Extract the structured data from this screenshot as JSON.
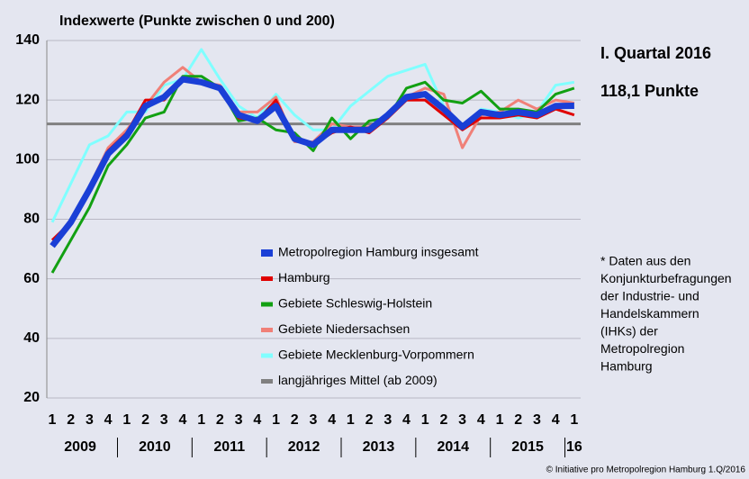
{
  "chart_data": {
    "type": "line",
    "title": "Indexwerte (Punkte zwischen 0 und 200)",
    "headline": "I. Quartal 2016",
    "headline_value": "118,1 Punkte",
    "footnote": [
      "* Daten aus den",
      "Konjunkturbefragungen",
      "der Industrie- und",
      "Handelskammern",
      "(IHKs) der",
      "Metropolregion",
      "Hamburg"
    ],
    "source": "© Initiative pro Metropolregion Hamburg 1.Q/2016",
    "categories": [
      "1",
      "2",
      "3",
      "4",
      "1",
      "2",
      "3",
      "4",
      "1",
      "2",
      "3",
      "4",
      "1",
      "2",
      "3",
      "4",
      "1",
      "2",
      "3",
      "4",
      "1",
      "2",
      "3",
      "4",
      "1",
      "2",
      "3",
      "4",
      "1"
    ],
    "years": [
      "2009",
      "2010",
      "2011",
      "2012",
      "2013",
      "2014",
      "2015",
      "16"
    ],
    "ylim": [
      20,
      140
    ],
    "yticks": [
      20,
      40,
      60,
      80,
      100,
      120,
      140
    ],
    "grid": true,
    "series": [
      {
        "name": "Metropolregion Hamburg insgesamt",
        "color": "#1a3fd6",
        "values": [
          71,
          79,
          90,
          102,
          108,
          118,
          121,
          127,
          126,
          124,
          115,
          113,
          118,
          107,
          105,
          110,
          110,
          110,
          115,
          121,
          122,
          117,
          111,
          116,
          115,
          116,
          115,
          118,
          118.1
        ]
      },
      {
        "name": "Hamburg",
        "color": "#e00000",
        "values": [
          73,
          79,
          90,
          103,
          109,
          120,
          120,
          127,
          126,
          124,
          114,
          113,
          120,
          107,
          105,
          109,
          111,
          109,
          114,
          120,
          120,
          115,
          110,
          114,
          114,
          115,
          114,
          117,
          115
        ]
      },
      {
        "name": "Gebiete Schleswig-Holstein",
        "color": "#12a012",
        "values": [
          62,
          73,
          84,
          98,
          105,
          114,
          116,
          128,
          128,
          124,
          113,
          114,
          110,
          109,
          103,
          114,
          107,
          113,
          114,
          124,
          126,
          120,
          119,
          123,
          117,
          117,
          116,
          122,
          124
        ]
      },
      {
        "name": "Gebiete Niedersachsen",
        "color": "#f08078",
        "values": [
          72,
          79,
          91,
          104,
          110,
          118,
          126,
          131,
          126,
          125,
          116,
          116,
          121,
          106,
          106,
          112,
          111,
          111,
          115,
          121,
          124,
          122,
          104,
          115,
          116,
          120,
          117,
          120,
          119
        ]
      },
      {
        "name": "Gebiete Mecklenburg-Vorpommern",
        "color": "#80ffff",
        "values": [
          79,
          92,
          105,
          108,
          116,
          116,
          125,
          127,
          137,
          127,
          118,
          114,
          122,
          115,
          110,
          110,
          118,
          123,
          128,
          130,
          132,
          118,
          110,
          117,
          116,
          114,
          116,
          125,
          126
        ]
      }
    ],
    "reference_line": {
      "name": "langjähriges Mittel (ab 2009)",
      "value": 112,
      "color": "#808080"
    }
  }
}
